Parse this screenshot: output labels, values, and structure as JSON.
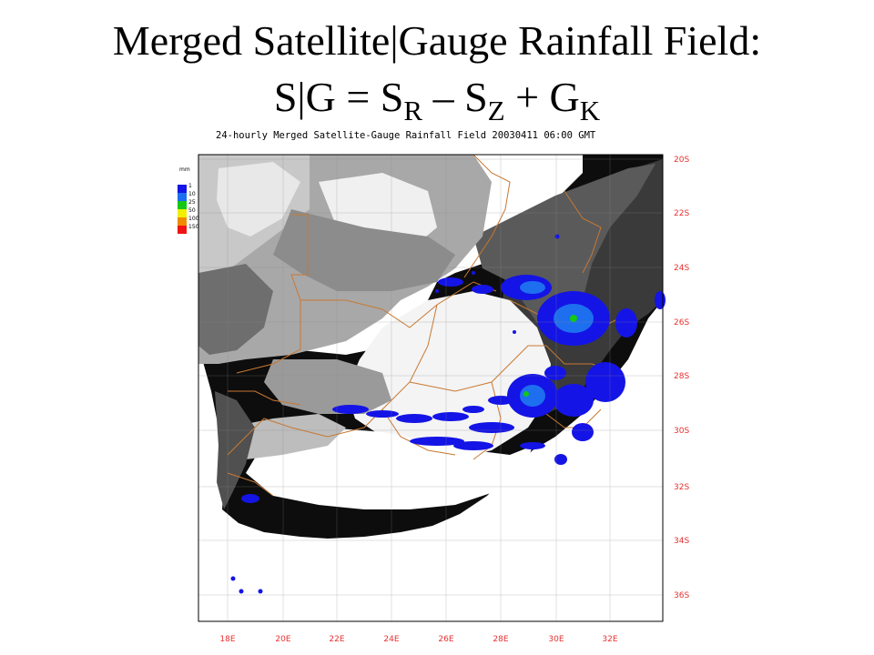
{
  "title": {
    "line1": "Merged Satellite|Gauge Rainfall Field:",
    "line2": {
      "prefix": "S|G = S",
      "sub_r": "R",
      "minus": " – S",
      "sub_z": "Z",
      "plus": " + G",
      "sub_k": "K"
    }
  },
  "map": {
    "caption": "24-hourly Merged Satellite-Gauge Rainfall Field 20030411 06:00 GMT",
    "legend": {
      "unit": "mm",
      "classes": [
        {
          "label": "1",
          "color": "#1414e6"
        },
        {
          "label": "10",
          "color": "#1e6ef0"
        },
        {
          "label": "25",
          "color": "#14c814"
        },
        {
          "label": "50",
          "color": "#f0f000"
        },
        {
          "label": "100",
          "color": "#f08c00"
        },
        {
          "label": "150",
          "color": "#f01414"
        }
      ]
    },
    "longitudes": [
      "18E",
      "20E",
      "22E",
      "24E",
      "26E",
      "28E",
      "30E",
      "32E"
    ],
    "latitudes": [
      "20S",
      "22S",
      "24S",
      "26S",
      "28S",
      "30S",
      "32S",
      "34S",
      "36S"
    ],
    "colors": {
      "ocean_dark": "#0a0a0a",
      "axis_labels": "#e83030",
      "borders": "#c87832",
      "rain_light": "#1414e6",
      "rain_medium": "#1e6ef0",
      "rain_heavy": "#14c814"
    }
  }
}
